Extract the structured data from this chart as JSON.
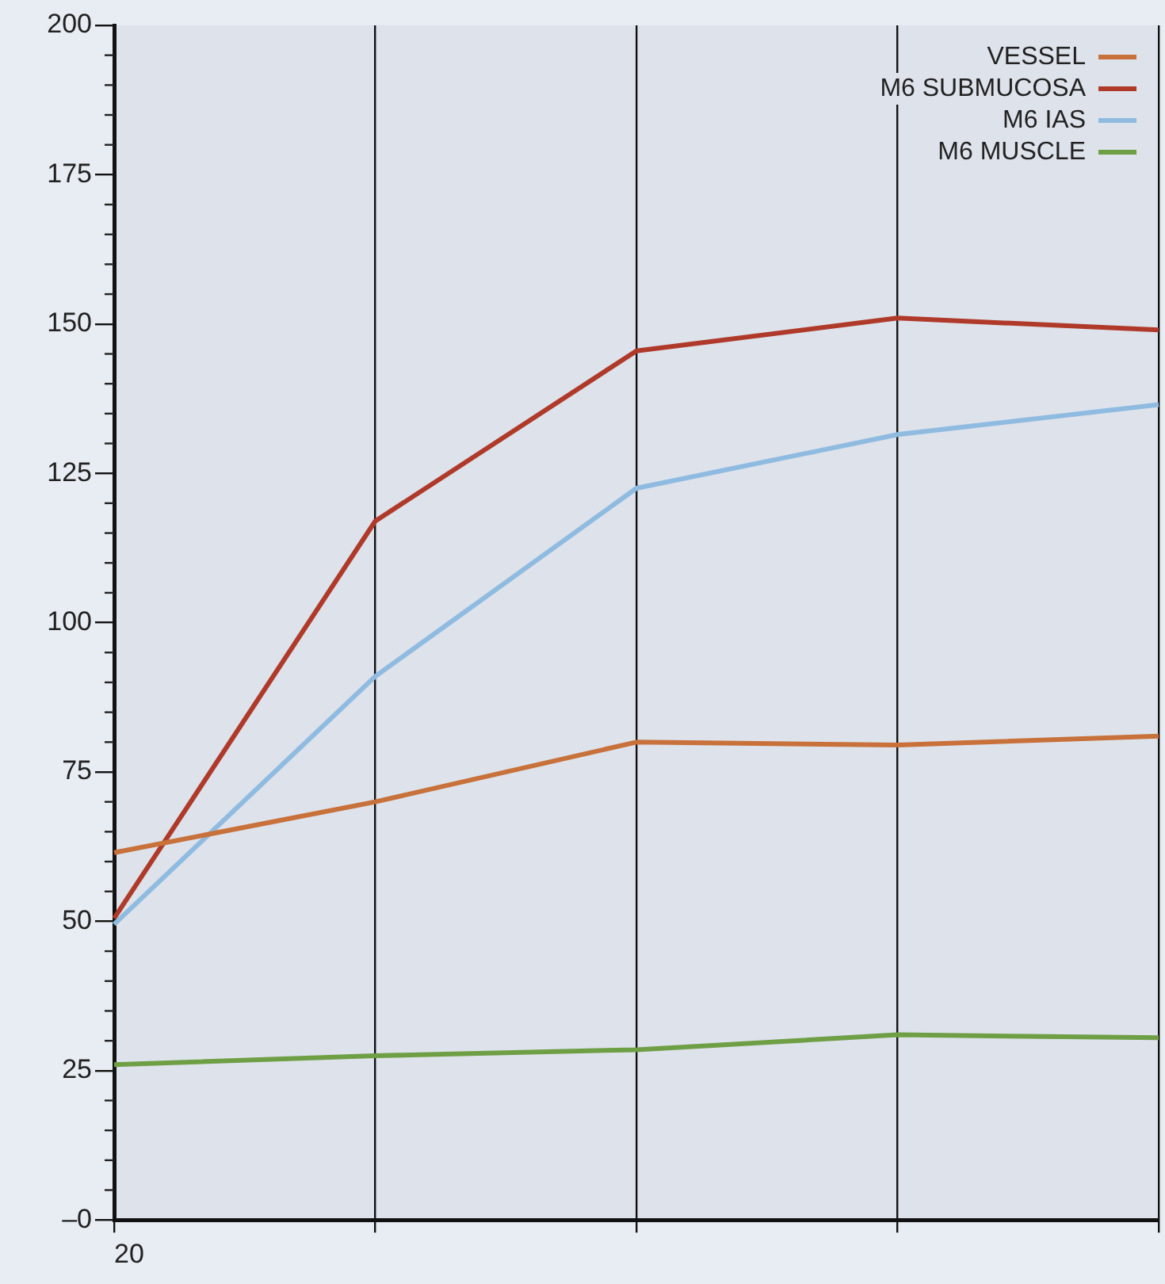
{
  "chart_data": {
    "type": "line",
    "categories": [
      "20",
      null,
      null,
      null,
      null
    ],
    "series": [
      {
        "name": "VESSEL",
        "color": "#c8713a",
        "values": [
          61.5,
          70,
          80,
          79.5,
          81
        ]
      },
      {
        "name": "M6 SUBMUCOSA",
        "color": "#b03a2a",
        "values": [
          50.5,
          117,
          145.5,
          151,
          149
        ]
      },
      {
        "name": "M6 IAS",
        "color": "#8fbbe0",
        "values": [
          49.5,
          91,
          122.5,
          131.5,
          136.5
        ]
      },
      {
        "name": "M6 MUSCLE",
        "color": "#6f9f45",
        "values": [
          26,
          27.5,
          28.5,
          31,
          30.5
        ]
      }
    ],
    "ylim": [
      0,
      200
    ],
    "yticks": [
      {
        "value": 0,
        "label": "–0"
      },
      25,
      50,
      75,
      100,
      125,
      150,
      175,
      200
    ],
    "grid": "x",
    "legend": "top right",
    "marker": "none",
    "line_style": "solid"
  }
}
